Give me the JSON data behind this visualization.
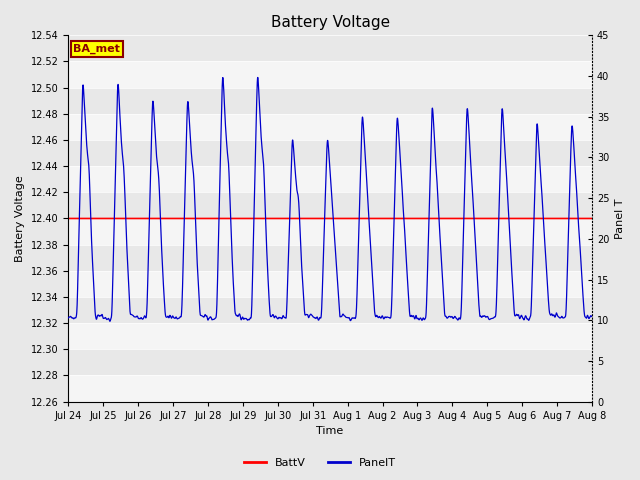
{
  "title": "Battery Voltage",
  "xlabel": "Time",
  "ylabel_left": "Battery Voltage",
  "ylabel_right": "Panel T",
  "ylim_left": [
    12.26,
    12.54
  ],
  "ylim_right": [
    0,
    45
  ],
  "yticks_left": [
    12.26,
    12.28,
    12.3,
    12.32,
    12.34,
    12.36,
    12.38,
    12.4,
    12.42,
    12.44,
    12.46,
    12.48,
    12.5,
    12.52,
    12.54
  ],
  "yticks_right": [
    0,
    5,
    10,
    15,
    20,
    25,
    30,
    35,
    40,
    45
  ],
  "xtick_labels": [
    "Jul 24",
    "Jul 25",
    "Jul 26",
    "Jul 27",
    "Jul 28",
    "Jul 29",
    "Jul 30",
    "Jul 31",
    "Aug 1",
    "Aug 2",
    "Aug 3",
    "Aug 4",
    "Aug 5",
    "Aug 6",
    "Aug 7",
    "Aug 8"
  ],
  "battv_value": 12.4,
  "battv_color": "#ff0000",
  "panel_color": "#0000cc",
  "bg_color_light": "#e8e8e8",
  "bg_color_white": "#f5f5f5",
  "annotation_text": "BA_met",
  "annotation_bg": "#ffff00",
  "annotation_border": "#8b0000",
  "legend_labels": [
    "BattV",
    "PanelT"
  ],
  "title_fontsize": 11,
  "axis_label_fontsize": 8,
  "tick_fontsize": 7,
  "figsize": [
    6.4,
    4.8
  ],
  "dpi": 100
}
